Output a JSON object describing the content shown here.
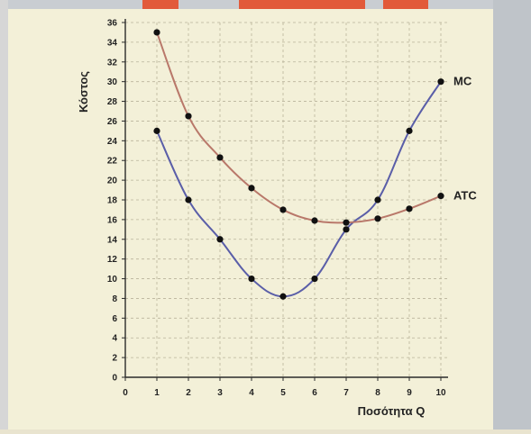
{
  "colors": {
    "plot_background": "#f3f0d8",
    "grid": "#b9b39a",
    "axis": "#2b2b2b",
    "mc_line": "#5a5ea8",
    "atc_line": "#b9786a",
    "marker": "#111111"
  },
  "chart_data": {
    "type": "line",
    "title": "",
    "xlabel": "Ποσότητα Q",
    "ylabel": "Κόστος",
    "xlim": [
      0,
      10
    ],
    "ylim": [
      0,
      36
    ],
    "x_ticks": [
      0,
      1,
      2,
      3,
      4,
      5,
      6,
      7,
      8,
      9,
      10
    ],
    "y_ticks": [
      0,
      2,
      4,
      6,
      8,
      10,
      12,
      14,
      16,
      18,
      20,
      22,
      24,
      26,
      28,
      30,
      32,
      34,
      36
    ],
    "grid": true,
    "legend": "inline labels at line ends",
    "series": [
      {
        "name": "MC",
        "x": [
          1,
          2,
          3,
          4,
          5,
          6,
          7,
          8,
          9,
          10
        ],
        "values": [
          25,
          18,
          14,
          10,
          8.2,
          10,
          15,
          18,
          25,
          30
        ]
      },
      {
        "name": "ATC",
        "x": [
          1,
          2,
          3,
          4,
          5,
          6,
          7,
          8,
          9,
          10
        ],
        "values": [
          35,
          26.5,
          22.3,
          19.2,
          17,
          15.9,
          15.7,
          16.1,
          17.1,
          18.4
        ]
      }
    ]
  }
}
